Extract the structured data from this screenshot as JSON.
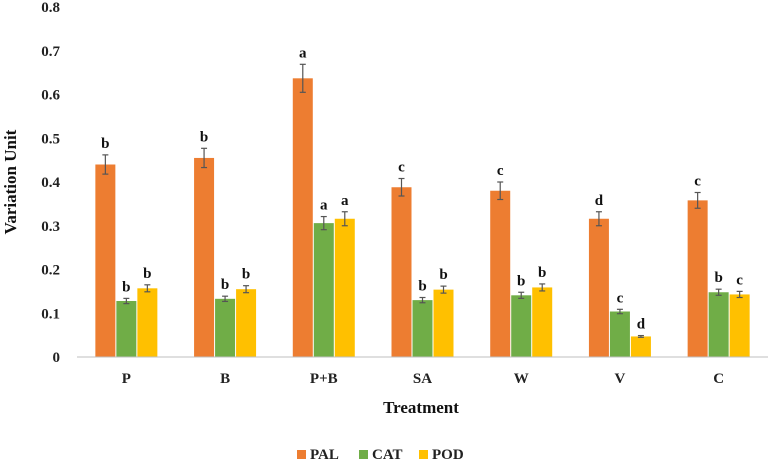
{
  "chart_data": {
    "type": "bar",
    "title": "",
    "xlabel": "Treatment",
    "ylabel": "Variation Unit",
    "ylim": [
      0,
      0.8
    ],
    "yticks": [
      0,
      0.1,
      0.2,
      0.3,
      0.4,
      0.5,
      0.6,
      0.7,
      0.8
    ],
    "ytick_labels": [
      "0",
      "0.1",
      "0.2",
      "0.3",
      "0.4",
      "0.5",
      "0.6",
      "0.7",
      "0.8"
    ],
    "categories": [
      "P",
      "B",
      "P+B",
      "SA",
      "W",
      "V",
      "C"
    ],
    "legend_position": "bottom-center",
    "grid": false,
    "series": [
      {
        "name": "PAL",
        "color": "#ED7D31",
        "values": [
          0.44,
          0.455,
          0.637,
          0.388,
          0.38,
          0.316,
          0.358
        ],
        "errors": [
          0.022,
          0.022,
          0.032,
          0.02,
          0.02,
          0.016,
          0.018
        ],
        "labels": [
          "b",
          "b",
          "a",
          "c",
          "c",
          "d",
          "c"
        ]
      },
      {
        "name": "CAT",
        "color": "#70AD47",
        "values": [
          0.128,
          0.133,
          0.306,
          0.13,
          0.141,
          0.104,
          0.148
        ],
        "errors": [
          0.006,
          0.006,
          0.015,
          0.006,
          0.007,
          0.005,
          0.007
        ],
        "labels": [
          "b",
          "b",
          "a",
          "b",
          "b",
          "c",
          "b"
        ]
      },
      {
        "name": "POD",
        "color": "#FFC000",
        "values": [
          0.157,
          0.155,
          0.316,
          0.154,
          0.159,
          0.047,
          0.143
        ],
        "errors": [
          0.008,
          0.008,
          0.016,
          0.008,
          0.008,
          0.002,
          0.007
        ],
        "labels": [
          "b",
          "b",
          "a",
          "b",
          "b",
          "d",
          "c"
        ]
      }
    ]
  }
}
